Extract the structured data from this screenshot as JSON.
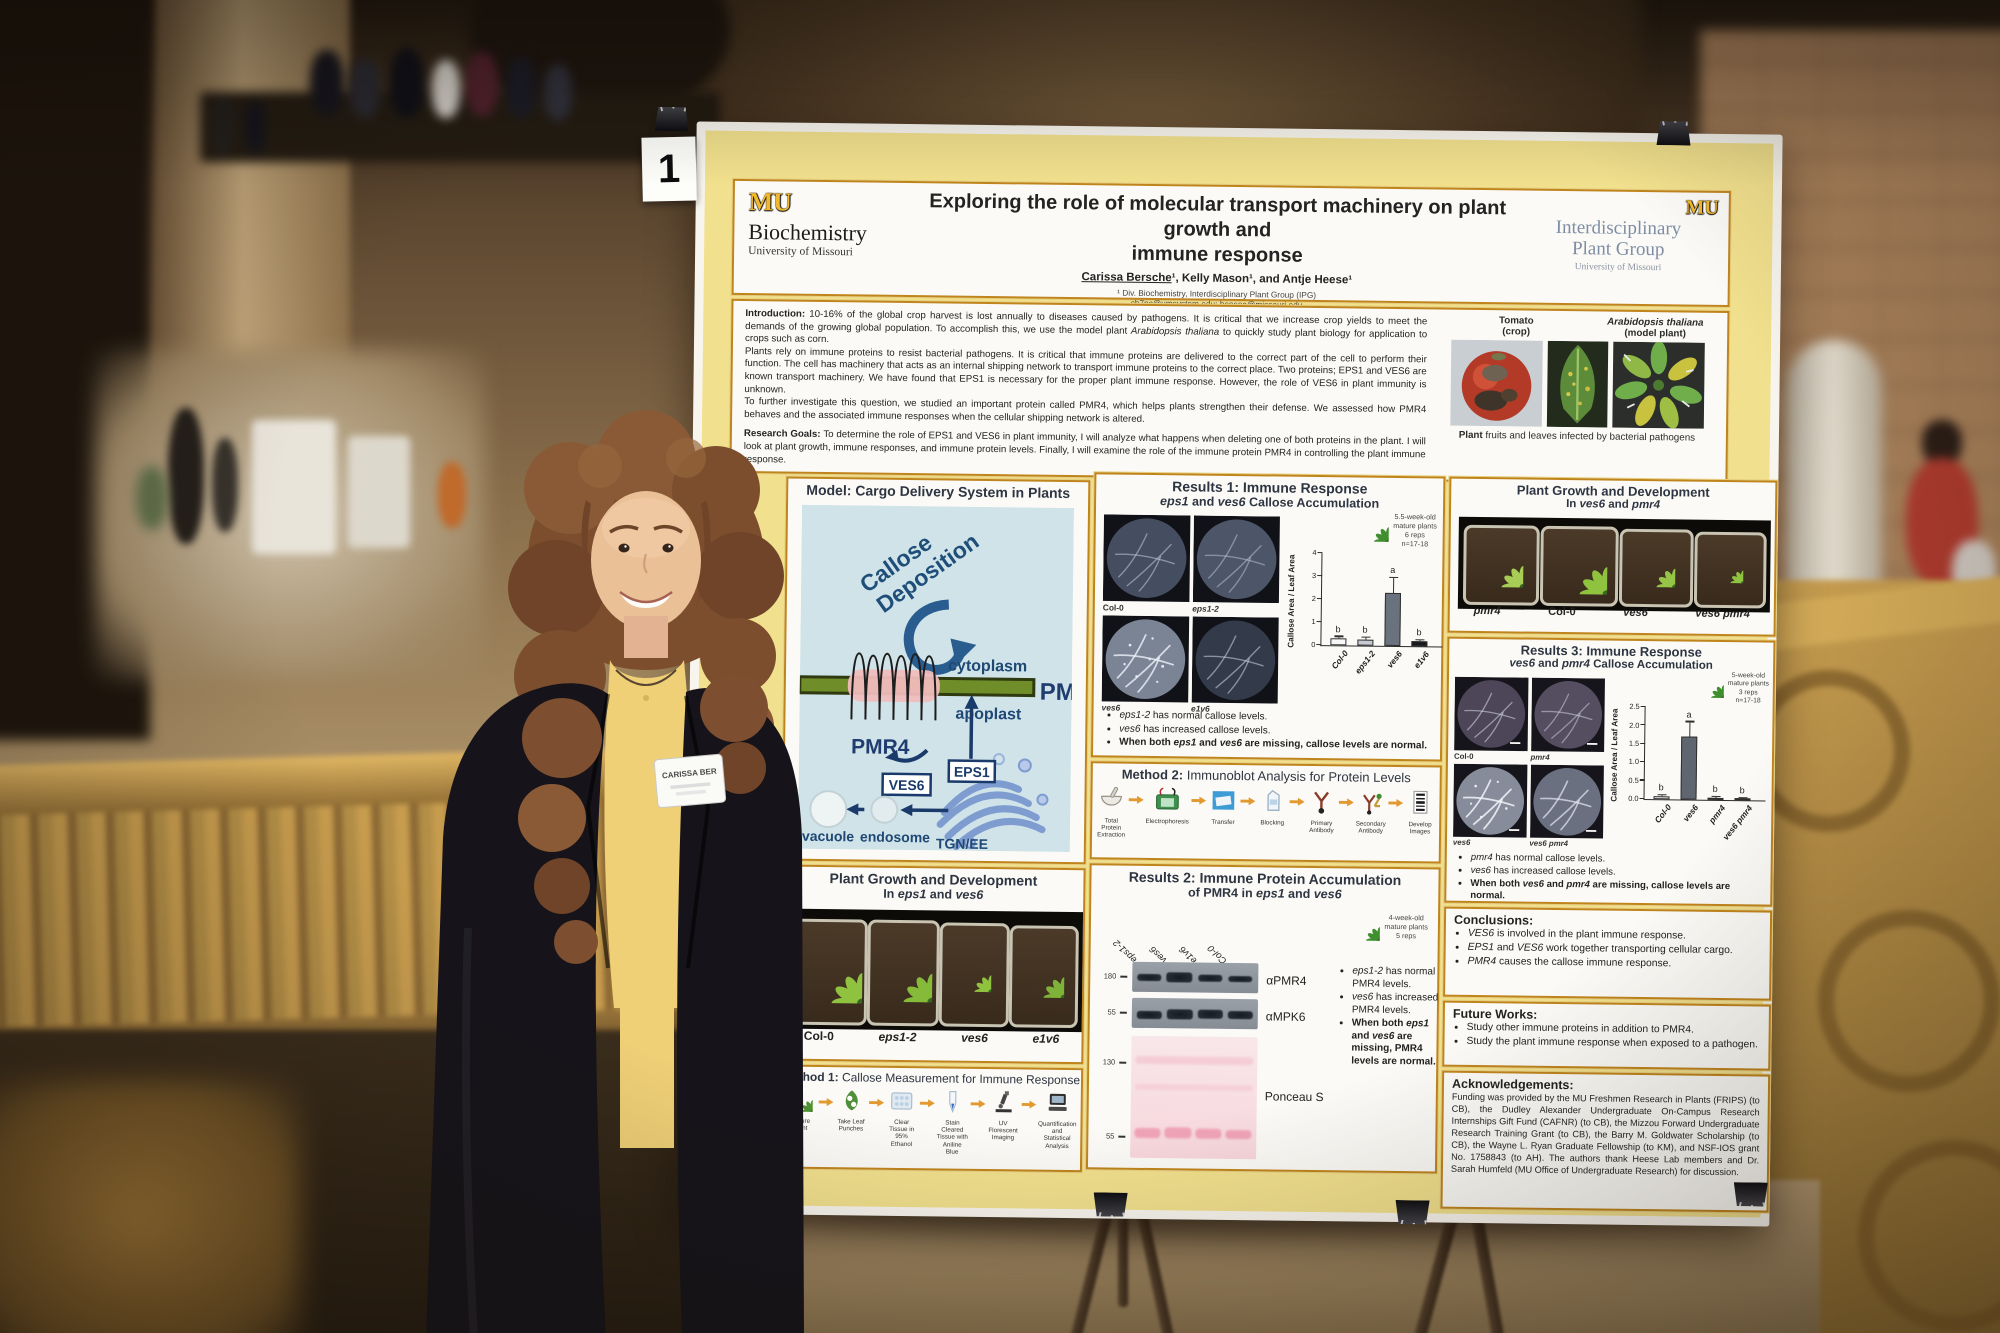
{
  "poster": {
    "number_tag": "1",
    "header": {
      "title_line1": "Exploring the role of molecular transport machinery on plant growth and",
      "title_line2": "immune response",
      "authors": [
        {
          "t": "Carissa Bersche",
          "b": 1,
          "u": 1
        },
        {
          "t": "¹, Kelly Mason¹, and Antje Heese¹",
          "b": 1
        }
      ],
      "affiliation": "¹ Div. Biochemistry, Interdisciplinary Plant Group (IPG)",
      "emails": "cb7nc@umsystem.edu; heesea@missouri.edu",
      "left_logo": {
        "mu": "MU",
        "name": "Biochemistry",
        "sub": "University of Missouri"
      },
      "right_logo": {
        "mu": "MU",
        "line1": "Interdisciplinary",
        "line2": "Plant Group",
        "sub": "University of Missouri"
      }
    },
    "intro": {
      "p1": [
        {
          "t": "Introduction: ",
          "b": 1
        },
        {
          "t": "10-16% of the global crop harvest is lost annually to diseases caused by pathogens. It is critical that we increase crop yields to meet the demands of the growing global population. To accomplish this, we use the model plant "
        },
        {
          "t": "Arabidopsis thaliana",
          "i": 1
        },
        {
          "t": " to quickly study plant biology for application to crops such as corn."
        }
      ],
      "p2": [
        {
          "t": "Plants rely on immune proteins to resist bacterial pathogens. It is critical that immune proteins are delivered to the correct part of the cell to perform their function. The cell has machinery that acts as an internal shipping network to transport immune proteins to the correct place. Two proteins; EPS1 and VES6 are known transport machinery. We have found that EPS1 is necessary for the proper plant immune response. However, the role of VES6 in plant immunity is unknown."
        }
      ],
      "p3": [
        {
          "t": "To further investigate this question, we studied an important protein called PMR4, which helps plants strengthen their defense. We assessed how PMR4 behaves and the associated immune responses when the cellular shipping network is altered."
        }
      ],
      "goals": [
        {
          "t": "Research Goals: ",
          "b": 1
        },
        {
          "t": "To determine the role of EPS1 and VES6 in plant immunity, I will analyze what happens when deleting one of both proteins in the plant. I will look at plant growth, immune responses, and immune protein levels. Finally, I will examine the role of the immune protein PMR4 in controlling the plant immune response."
        }
      ],
      "tomato_label": [
        {
          "t": "Tomato",
          "b": 1
        }
      ],
      "tomato_sub": [
        {
          "t": "(crop)",
          "b": 1
        }
      ],
      "arab_label": [
        {
          "t": "Arabidopsis thaliana",
          "b": 1,
          "i": 1
        }
      ],
      "arab_sub": [
        {
          "t": "(model plant)",
          "b": 1
        }
      ],
      "caption": [
        {
          "t": "Plant",
          "b": 1
        },
        {
          "t": " fruits and leaves infected by bacterial pathogens"
        }
      ]
    },
    "model": {
      "title": "Model: Cargo Delivery System in Plants",
      "callose1": "Callose",
      "callose2": "Deposition",
      "cytoplasm": "cytoplasm",
      "pm": "PM",
      "apoplast": "apoplast",
      "pmr4": "PMR4",
      "eps1": "EPS1",
      "ves6": "VES6",
      "vacuole": "vacuole",
      "endosome": "endosome",
      "tgn": "TGN/EE"
    },
    "results1": {
      "title1": "Results 1: Immune Response",
      "title2": [
        {
          "t": "eps1",
          "i": 1,
          "b": 1
        },
        {
          "t": " and ",
          "b": 1
        },
        {
          "t": "ves6",
          "i": 1,
          "b": 1
        },
        {
          "t": " Callose Accumulation",
          "b": 1
        }
      ],
      "images": [
        [
          {
            "t": "Col-0",
            "b": 1
          }
        ],
        [
          {
            "t": "eps1-2",
            "b": 1,
            "i": 1
          }
        ],
        [
          {
            "t": "ves6",
            "b": 1,
            "i": 1
          }
        ],
        [
          {
            "t": "e1v6",
            "b": 1,
            "i": 1
          }
        ]
      ],
      "note": [
        "5.5-week-old",
        "mature plants",
        "6 reps",
        "n=17-18"
      ],
      "bullets": [
        [
          {
            "t": "eps1-2",
            "i": 1
          },
          {
            "t": " has normal callose levels."
          }
        ],
        [
          {
            "t": "ves6",
            "i": 1
          },
          {
            "t": " has increased callose levels."
          }
        ],
        [
          {
            "t": "When both ",
            "b": 1
          },
          {
            "t": "eps1",
            "b": 1,
            "i": 1
          },
          {
            "t": " and ",
            "b": 1
          },
          {
            "t": "ves6",
            "b": 1,
            "i": 1
          },
          {
            "t": " are missing, callose levels are normal.",
            "b": 1
          }
        ]
      ]
    },
    "method2": {
      "label": "Method 2:",
      "title": " Immunoblot Analysis for Protein Levels",
      "steps": [
        "Total Protein Extraction",
        "Electrophoresis",
        "Transfer",
        "Blocking",
        "Primary Antibody",
        "Secondary Antibody",
        "Develop Images"
      ]
    },
    "results2": {
      "title1": "Results 2: Immune Protein Accumulation",
      "title2": [
        {
          "t": "of PMR4 in ",
          "b": 1
        },
        {
          "t": "eps1",
          "i": 1,
          "b": 1
        },
        {
          "t": " and ",
          "b": 1
        },
        {
          "t": "ves6",
          "i": 1,
          "b": 1
        }
      ],
      "lanes": [
        [
          {
            "t": "eps1-2",
            "i": 1
          }
        ],
        [
          {
            "t": "ves6",
            "i": 1
          }
        ],
        [
          {
            "t": "e1v6",
            "i": 1
          }
        ],
        [
          {
            "t": "Col-0"
          }
        ]
      ],
      "blot1": "αPMR4",
      "blot2": "αMPK6",
      "blot3": "Ponceau S",
      "markers": [
        "180",
        "55",
        "130",
        "55"
      ],
      "note": [
        "4-week-old",
        "mature plants",
        "5 reps"
      ],
      "bullets": [
        [
          {
            "t": "eps1-2",
            "i": 1
          },
          {
            "t": " has normal PMR4 levels."
          }
        ],
        [
          {
            "t": "ves6",
            "i": 1
          },
          {
            "t": " has increased PMR4 levels."
          }
        ],
        [
          {
            "t": "When both ",
            "b": 1
          },
          {
            "t": "eps1",
            "b": 1,
            "i": 1
          },
          {
            "t": " and ",
            "b": 1
          },
          {
            "t": "ves6",
            "b": 1,
            "i": 1
          },
          {
            "t": " are missing, PMR4 levels are normal.",
            "b": 1
          }
        ]
      ]
    },
    "growth_left": {
      "title1": "Plant Growth and Development",
      "title2": [
        {
          "t": "In ",
          "b": 1
        },
        {
          "t": "eps1",
          "b": 1,
          "i": 1
        },
        {
          "t": " and ",
          "b": 1
        },
        {
          "t": "ves6",
          "b": 1,
          "i": 1
        }
      ],
      "pots": [
        [
          {
            "t": "Col-0",
            "b": 1
          }
        ],
        [
          {
            "t": "eps1-2",
            "b": 1,
            "i": 1
          }
        ],
        [
          {
            "t": "ves6",
            "b": 1,
            "i": 1
          }
        ],
        [
          {
            "t": "e1v6",
            "b": 1,
            "i": 1
          }
        ]
      ]
    },
    "method1": {
      "label": "Method 1:",
      "title": "  Callose Measurement for Immune Response",
      "steps": [
        "Mature Plant",
        "Take Leaf Punches",
        "Clear Tissue in 95% Ethanol",
        "Stain Cleared Tissue with Aniline Blue",
        "UV Florescent Imaging",
        "Quantification and Statistical Analysis"
      ]
    },
    "growth_right": {
      "title1": "Plant Growth and Development",
      "title2": [
        {
          "t": "In ",
          "b": 1
        },
        {
          "t": "ves6",
          "b": 1,
          "i": 1
        },
        {
          "t": " and ",
          "b": 1
        },
        {
          "t": "pmr4",
          "b": 1,
          "i": 1
        }
      ],
      "pots": [
        [
          {
            "t": "pmr4",
            "b": 1,
            "i": 1
          }
        ],
        [
          {
            "t": "Col-0",
            "b": 1
          }
        ],
        [
          {
            "t": "ves6",
            "b": 1,
            "i": 1
          }
        ],
        [
          {
            "t": "ves6 pmr4",
            "b": 1,
            "i": 1
          }
        ]
      ]
    },
    "results3": {
      "title1": "Results 3: Immune Response",
      "title2": [
        {
          "t": "ves6",
          "i": 1,
          "b": 1
        },
        {
          "t": " and ",
          "b": 1
        },
        {
          "t": "pmr4",
          "i": 1,
          "b": 1
        },
        {
          "t": " Callose Accumulation",
          "b": 1
        }
      ],
      "images": [
        [
          {
            "t": "Col-0",
            "b": 1
          }
        ],
        [
          {
            "t": "pmr4",
            "b": 1,
            "i": 1
          }
        ],
        [
          {
            "t": "ves6",
            "b": 1,
            "i": 1
          }
        ],
        [
          {
            "t": "ves6 pmr4",
            "b": 1,
            "i": 1
          }
        ]
      ],
      "note": [
        "5-week-old",
        "mature plants",
        "3 reps",
        "n=17-18"
      ],
      "bullets": [
        [
          {
            "t": "pmr4",
            "i": 1
          },
          {
            "t": " has normal callose levels."
          }
        ],
        [
          {
            "t": "ves6",
            "i": 1
          },
          {
            "t": " has increased callose levels."
          }
        ],
        [
          {
            "t": "When both ",
            "b": 1
          },
          {
            "t": "ves6",
            "b": 1,
            "i": 1
          },
          {
            "t": " and ",
            "b": 1
          },
          {
            "t": "pmr4",
            "b": 1,
            "i": 1
          },
          {
            "t": " are missing, callose levels are normal.",
            "b": 1
          }
        ]
      ]
    },
    "conclusions": {
      "label": "Conclusions:",
      "bullets": [
        [
          {
            "t": "VES6",
            "i": 1
          },
          {
            "t": " is involved in the plant immune response."
          }
        ],
        [
          {
            "t": "EPS1",
            "i": 1
          },
          {
            "t": " and "
          },
          {
            "t": "VES6",
            "i": 1
          },
          {
            "t": " work together transporting cellular cargo."
          }
        ],
        [
          {
            "t": "PMR4",
            "i": 1
          },
          {
            "t": " causes the callose immune response."
          }
        ]
      ]
    },
    "future": {
      "label": "Future Works:",
      "bullets": [
        "Study other immune proteins in addition to PMR4.",
        "Study the plant immune response when exposed to a pathogen."
      ]
    },
    "ack": {
      "label": "Acknowledgements:",
      "text": "Funding was provided by the MU Freshmen Research in Plants (FRIPS) (to CB), the Dudley Alexander Undergraduate On-Campus Research Internships Gift Fund (CAFNR) (to CB), the Mizzou Forward Undergraduate Research Training Grant (to CB), the Barry M. Goldwater Scholarship (to CB), the Wayne L. Ryan Graduate Fellowship (to KM), and NSF-IOS grant No. 1758843 (to AH). The authors thank Heese Lab members and Dr. Sarah Humfeld (MU Office of Undergraduate Research) for discussion."
    }
  },
  "person": {
    "name_tag": "CARISSA BER"
  },
  "chart_data": [
    {
      "type": "bar",
      "title": "Results 1: Immune Response — eps1 and ves6 Callose Accumulation",
      "xlabel": "",
      "ylabel": "Callose Area / Leaf Area",
      "ylim": [
        0,
        4
      ],
      "yticks": [
        {
          "v": 0,
          "l": "0"
        },
        {
          "v": 1,
          "l": "1"
        },
        {
          "v": 2,
          "l": "2"
        },
        {
          "v": 3,
          "l": "3"
        },
        {
          "v": 4,
          "l": "4"
        }
      ],
      "categories": [
        "Col-0",
        "eps1-2",
        "ves6",
        "e1v6"
      ],
      "values": [
        0.3,
        0.28,
        2.3,
        0.2
      ],
      "errors": [
        0.06,
        0.06,
        0.65,
        0.05
      ],
      "sig_letters": [
        "b",
        "b",
        "a",
        "b"
      ],
      "bar_colors": [
        "#f7f7f7",
        "#c7cad0",
        "#6a727d",
        "#17191d"
      ],
      "legend": null,
      "grid": false,
      "note": "5.5-week-old mature plants, 6 reps, n=17-18"
    },
    {
      "type": "bar",
      "title": "Results 3: Immune Response — ves6 and pmr4 Callose Accumulation",
      "xlabel": "",
      "ylabel": "Callose Area / Leaf Area",
      "ylim": [
        0,
        2.5
      ],
      "yticks": [
        {
          "v": 0,
          "l": "0.0"
        },
        {
          "v": 0.5,
          "l": "0.5"
        },
        {
          "v": 1,
          "l": "1.0"
        },
        {
          "v": 1.5,
          "l": "1.5"
        },
        {
          "v": 2,
          "l": "2.0"
        },
        {
          "v": 2.5,
          "l": "2.5"
        }
      ],
      "categories": [
        "Col-0",
        "ves6",
        "pmr4",
        "ves6 pmr4"
      ],
      "values": [
        0.07,
        1.7,
        0.05,
        0.04
      ],
      "errors": [
        0.03,
        0.4,
        0.02,
        0.02
      ],
      "sig_letters": [
        "b",
        "a",
        "b",
        "b"
      ],
      "bar_colors": [
        "#ececec",
        "#5f6670",
        "#2e3338",
        "#2e3338"
      ],
      "legend": null,
      "grid": false,
      "note": "5-week-old mature plants, 3 reps, n=17-18"
    }
  ]
}
